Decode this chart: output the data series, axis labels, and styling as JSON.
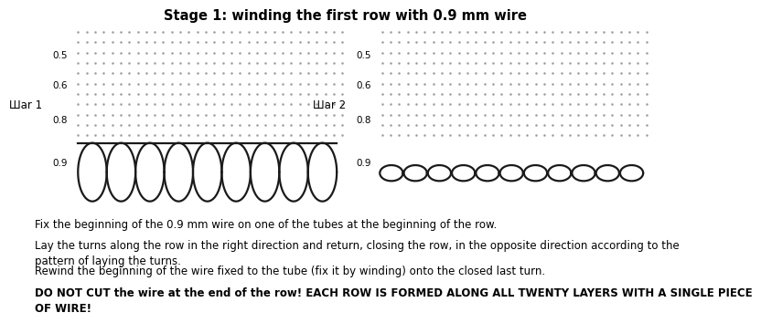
{
  "title": "Stage 1: winding the first row with 0.9 mm wire",
  "title_fontsize": 10.5,
  "label_left": "Шar 1",
  "label_right": "Шar 2",
  "ytick_labels": [
    "0.5",
    "0.6",
    "0.8",
    "0.9"
  ],
  "dot_color": "#999999",
  "wire_color": "#1a1a1a",
  "background_color": "#ffffff",
  "text_lines": [
    "Fix the beginning of the 0.9 mm wire on one of the tubes at the beginning of the row.",
    "Lay the turns along the row in the right direction and return, closing the row, in the opposite direction according to the\npattern of laying the turns.",
    "Rewind the beginning of the wire fixed to the tube (fix it by winding) onto the closed last turn.",
    "DO NOT CUT the wire at the end of the row! EACH ROW IS FORMED ALONG ALL TWENTY LAYERS WITH A SINGLE PIECE\nOF WIRE!"
  ],
  "text_bold_index": 3,
  "text_fontsize": 8.5
}
